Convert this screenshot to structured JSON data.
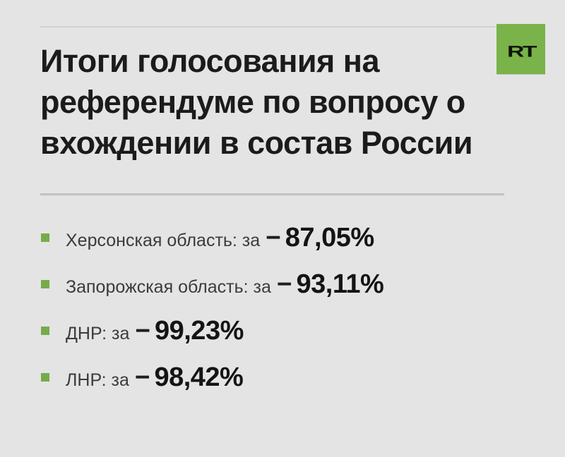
{
  "brand": {
    "logo_text": "RT"
  },
  "colors": {
    "background": "#e4e4e4",
    "brand_green": "#79b34a",
    "bullet_green": "#75ac49",
    "headline_text": "#1b1b1b",
    "divider_gray": "#c2c2c2"
  },
  "header": {
    "title": "Итоги голосования на\nреферендуме по вопросу о\nвхождении в состав России"
  },
  "results": {
    "dash": "−",
    "items": [
      {
        "label": "Херсонская область: за",
        "value": "87,05%"
      },
      {
        "label": "Запорожская область: за",
        "value": "93,11%"
      },
      {
        "label": "ДНР: за",
        "value": "99,23%"
      },
      {
        "label": "ЛНР: за",
        "value": "98,42%"
      }
    ]
  }
}
